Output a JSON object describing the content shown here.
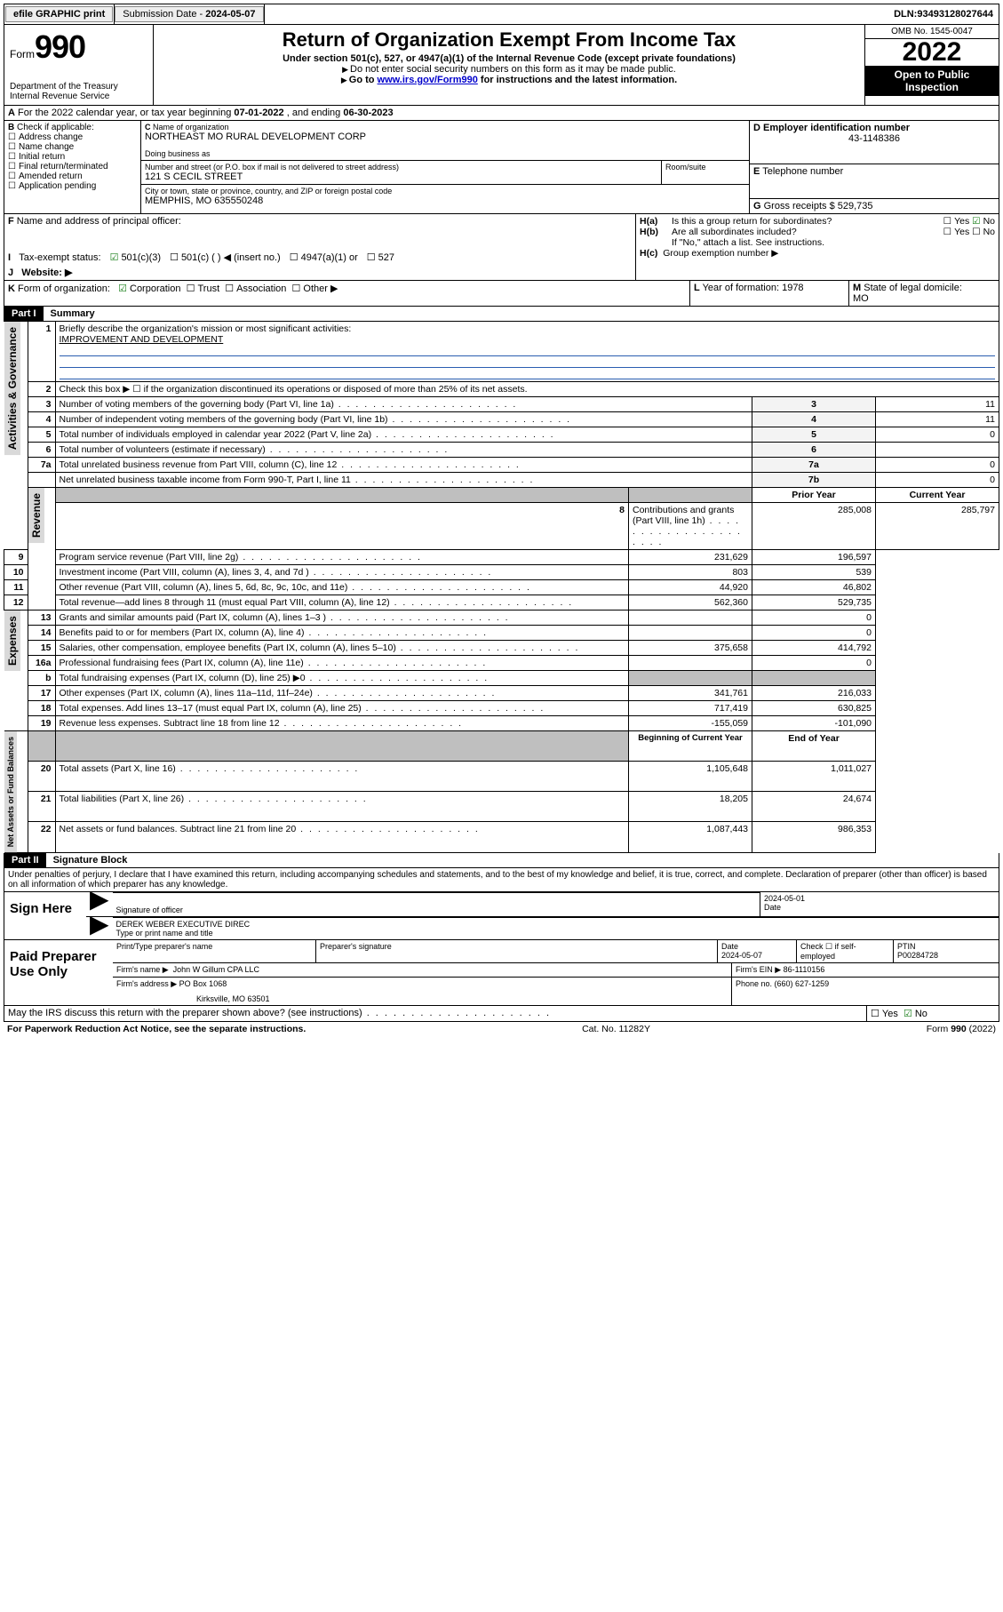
{
  "top": {
    "efile": "efile GRAPHIC print",
    "submission_label": "Submission Date - ",
    "submission_date": "2024-05-07",
    "dln_label": "DLN: ",
    "dln": "93493128027644"
  },
  "header": {
    "form_word": "Form",
    "form_no": "990",
    "dept": "Department of the Treasury",
    "irs": "Internal Revenue Service",
    "title": "Return of Organization Exempt From Income Tax",
    "section": "Under section 501(c), 527, or 4947(a)(1) of the Internal Revenue Code (except private foundations)",
    "ssn_note": "Do not enter social security numbers on this form as it may be made public.",
    "goto_pre": "Go to ",
    "goto_link": "www.irs.gov/Form990",
    "goto_post": " for instructions and the latest information.",
    "omb": "OMB No. 1545-0047",
    "year": "2022",
    "inspect1": "Open to Public",
    "inspect2": "Inspection"
  },
  "A": {
    "text_pre": "For the 2022 calendar year, or tax year beginning ",
    "begin": "07-01-2022",
    "mid": " , and ending ",
    "end": "06-30-2023"
  },
  "B": {
    "title": "Check if applicable:",
    "items": [
      "Address change",
      "Name change",
      "Initial return",
      "Final return/terminated",
      "Amended return",
      "Application pending"
    ]
  },
  "C": {
    "label": "Name of organization",
    "name": "NORTHEAST MO RURAL DEVELOPMENT CORP",
    "dba_label": "Doing business as",
    "street_label": "Number and street (or P.O. box if mail is not delivered to street address)",
    "room_label": "Room/suite",
    "street": "121 S CECIL STREET",
    "city_label": "City or town, state or province, country, and ZIP or foreign postal code",
    "city": "MEMPHIS, MO  635550248"
  },
  "D": {
    "label": "Employer identification number",
    "value": "43-1148386"
  },
  "E": {
    "label": "Telephone number",
    "value": ""
  },
  "G": {
    "label": "Gross receipts $ ",
    "value": "529,735"
  },
  "F": {
    "label": "Name and address of principal officer:"
  },
  "H": {
    "a": "Is this a group return for subordinates?",
    "b": "Are all subordinates included?",
    "b_note": "If \"No,\" attach a list. See instructions.",
    "c": "Group exemption number ▶",
    "yes": "Yes",
    "no": "No"
  },
  "I": {
    "label": "Tax-exempt status:",
    "opts": [
      "501(c)(3)",
      "501(c) (   ) ◀ (insert no.)",
      "4947(a)(1) or",
      "527"
    ]
  },
  "J": {
    "label": "Website: ▶"
  },
  "K": {
    "label": "Form of organization:",
    "opts": [
      "Corporation",
      "Trust",
      "Association",
      "Other ▶"
    ]
  },
  "L": {
    "label": "Year of formation: ",
    "value": "1978"
  },
  "M": {
    "label": "State of legal domicile:",
    "value": "MO"
  },
  "parts": {
    "p1": "Part I",
    "p1t": "Summary",
    "p2": "Part II",
    "p2t": "Signature Block"
  },
  "summary": {
    "l1_label": "Briefly describe the organization's mission or most significant activities:",
    "l1_text": "IMPROVEMENT AND DEVELOPMENT",
    "l2": "Check this box ▶ ☐  if the organization discontinued its operations or disposed of more than 25% of its net assets.",
    "hdr_prior": "Prior Year",
    "hdr_curr": "Current Year",
    "hdr_begin": "Beginning of Current Year",
    "hdr_end": "End of Year",
    "rows_gov": [
      {
        "n": "3",
        "t": "Number of voting members of the governing body (Part VI, line 1a)",
        "b": "3",
        "v": "11"
      },
      {
        "n": "4",
        "t": "Number of independent voting members of the governing body (Part VI, line 1b)",
        "b": "4",
        "v": "11"
      },
      {
        "n": "5",
        "t": "Total number of individuals employed in calendar year 2022 (Part V, line 2a)",
        "b": "5",
        "v": "0"
      },
      {
        "n": "6",
        "t": "Total number of volunteers (estimate if necessary)",
        "b": "6",
        "v": ""
      },
      {
        "n": "7a",
        "t": "Total unrelated business revenue from Part VIII, column (C), line 12",
        "b": "7a",
        "v": "0"
      },
      {
        "n": "",
        "t": "Net unrelated business taxable income from Form 990-T, Part I, line 11",
        "b": "7b",
        "v": "0"
      }
    ],
    "rows_rev": [
      {
        "n": "8",
        "t": "Contributions and grants (Part VIII, line 1h)",
        "p": "285,008",
        "c": "285,797"
      },
      {
        "n": "9",
        "t": "Program service revenue (Part VIII, line 2g)",
        "p": "231,629",
        "c": "196,597"
      },
      {
        "n": "10",
        "t": "Investment income (Part VIII, column (A), lines 3, 4, and 7d )",
        "p": "803",
        "c": "539"
      },
      {
        "n": "11",
        "t": "Other revenue (Part VIII, column (A), lines 5, 6d, 8c, 9c, 10c, and 11e)",
        "p": "44,920",
        "c": "46,802"
      },
      {
        "n": "12",
        "t": "Total revenue—add lines 8 through 11 (must equal Part VIII, column (A), line 12)",
        "p": "562,360",
        "c": "529,735"
      }
    ],
    "rows_exp": [
      {
        "n": "13",
        "t": "Grants and similar amounts paid (Part IX, column (A), lines 1–3 )",
        "p": "",
        "c": "0"
      },
      {
        "n": "14",
        "t": "Benefits paid to or for members (Part IX, column (A), line 4)",
        "p": "",
        "c": "0"
      },
      {
        "n": "15",
        "t": "Salaries, other compensation, employee benefits (Part IX, column (A), lines 5–10)",
        "p": "375,658",
        "c": "414,792"
      },
      {
        "n": "16a",
        "t": "Professional fundraising fees (Part IX, column (A), line 11e)",
        "p": "",
        "c": "0"
      },
      {
        "n": "b",
        "t": "Total fundraising expenses (Part IX, column (D), line 25) ▶0",
        "p": "GRAY",
        "c": "GRAY"
      },
      {
        "n": "17",
        "t": "Other expenses (Part IX, column (A), lines 11a–11d, 11f–24e)",
        "p": "341,761",
        "c": "216,033"
      },
      {
        "n": "18",
        "t": "Total expenses. Add lines 13–17 (must equal Part IX, column (A), line 25)",
        "p": "717,419",
        "c": "630,825"
      },
      {
        "n": "19",
        "t": "Revenue less expenses. Subtract line 18 from line 12",
        "p": "-155,059",
        "c": "-101,090"
      }
    ],
    "rows_net": [
      {
        "n": "20",
        "t": "Total assets (Part X, line 16)",
        "p": "1,105,648",
        "c": "1,011,027"
      },
      {
        "n": "21",
        "t": "Total liabilities (Part X, line 26)",
        "p": "18,205",
        "c": "24,674"
      },
      {
        "n": "22",
        "t": "Net assets or fund balances. Subtract line 21 from line 20",
        "p": "1,087,443",
        "c": "986,353"
      }
    ],
    "sidebars": {
      "gov": "Activities & Governance",
      "rev": "Revenue",
      "exp": "Expenses",
      "net": "Net Assets or Fund Balances"
    }
  },
  "penalty": "Under penalties of perjury, I declare that I have examined this return, including accompanying schedules and statements, and to the best of my knowledge and belief, it is true, correct, and complete. Declaration of preparer (other than officer) is based on all information of which preparer has any knowledge.",
  "sign": {
    "here": "Sign Here",
    "sig_officer": "Signature of officer",
    "date_label": "Date",
    "date": "2024-05-01",
    "name": "DEREK WEBER  EXECUTIVE DIREC",
    "type_label": "Type or print name and title"
  },
  "paid": {
    "title": "Paid Preparer Use Only",
    "print_label": "Print/Type preparer's name",
    "sig_label": "Preparer's signature",
    "date_label": "Date",
    "date": "2024-05-07",
    "check_label": "Check ☐ if self-employed",
    "ptin_label": "PTIN",
    "ptin": "P00284728",
    "firm_name_label": "Firm's name    ▶",
    "firm_name": "John W Gillum CPA LLC",
    "firm_ein_label": "Firm's EIN ▶",
    "firm_ein": "86-1110156",
    "firm_addr_label": "Firm's address ▶",
    "firm_addr1": "PO Box 1068",
    "firm_addr2": "Kirksville, MO  63501",
    "phone_label": "Phone no. ",
    "phone": "(660) 627-1259"
  },
  "discuss": "May the IRS discuss this return with the preparer shown above? (see instructions)",
  "footer": {
    "left": "For Paperwork Reduction Act Notice, see the separate instructions.",
    "mid": "Cat. No. 11282Y",
    "right_pre": "Form ",
    "right_b": "990",
    "right_post": " (2022)"
  }
}
